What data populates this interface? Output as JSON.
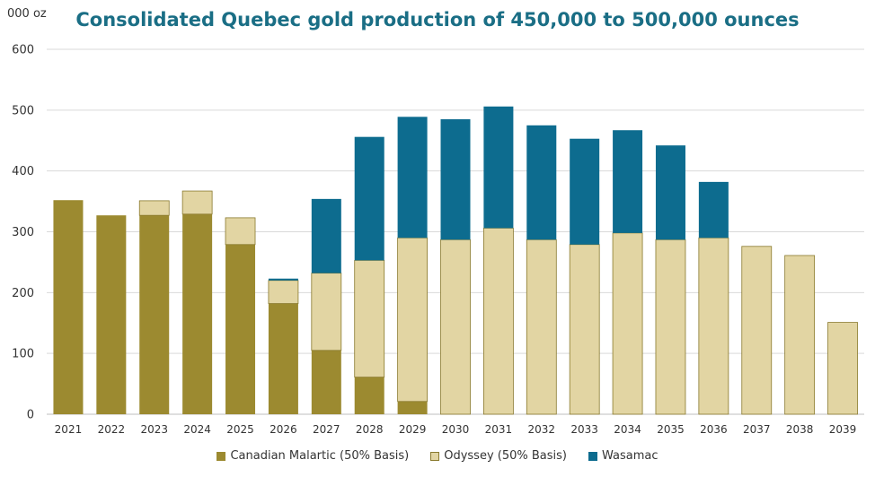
{
  "chart_data": {
    "type": "bar",
    "stacked": true,
    "title": "Consolidated Quebec gold production of 450,000 to 500,000 ounces",
    "ylabel": "000 oz",
    "xlabel": "",
    "ylim": [
      0,
      600
    ],
    "yticks": [
      0,
      100,
      200,
      300,
      400,
      500,
      600
    ],
    "grid": true,
    "legend_position": "bottom",
    "categories": [
      "2021",
      "2022",
      "2023",
      "2024",
      "2025",
      "2026",
      "2027",
      "2028",
      "2029",
      "2030",
      "2031",
      "2032",
      "2033",
      "2034",
      "2035",
      "2036",
      "2037",
      "2038",
      "2039"
    ],
    "series": [
      {
        "name": "Canadian Malartic (50% Basis)",
        "color": "#9c8a30",
        "values": [
          352,
          327,
          327,
          329,
          279,
          182,
          105,
          61,
          21,
          0,
          0,
          0,
          0,
          0,
          0,
          0,
          0,
          0,
          0
        ]
      },
      {
        "name": "Odyssey (50% Basis)",
        "color": "#e2d5a3",
        "values": [
          0,
          0,
          24,
          38,
          44,
          38,
          127,
          192,
          269,
          287,
          306,
          287,
          279,
          298,
          287,
          290,
          276,
          261,
          151
        ]
      },
      {
        "name": "Wasamac",
        "color": "#0d6c8f",
        "values": [
          0,
          0,
          0,
          0,
          0,
          3,
          122,
          203,
          199,
          198,
          200,
          188,
          174,
          169,
          155,
          92,
          0,
          0,
          0
        ]
      }
    ]
  }
}
